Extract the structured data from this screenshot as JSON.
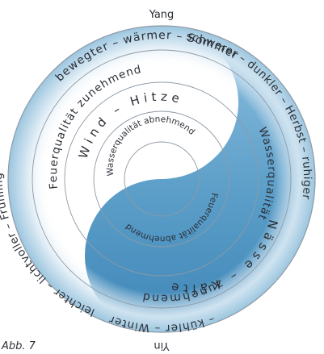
{
  "poles": {
    "top": "Yang",
    "bottom": "Yin"
  },
  "outer_ring": {
    "top": "bewegter – wärmer – Sommer",
    "right": "schwerer – dunkler – Herbst – ruhiger",
    "bottom": "– kühler – Winter",
    "left": "leichter – lichtvoller – Frühling –"
  },
  "middle_ring": {
    "upper": "Feuerqualität zunehmend",
    "right": "Wasserqualität",
    "lower": "zunehmend"
  },
  "inner_ring": {
    "upper": "Wind – Hitze",
    "lower": "Nässe – Kälte"
  },
  "core": {
    "upper": "Wasserqualität abnehmend",
    "lower": "Feuerqualität abnehmend"
  },
  "caption": "Abb. 7",
  "colors": {
    "yin": "#5b9ec8",
    "rim": "#9cc6df",
    "line": "#8e9aa6",
    "ink": "#2b2f36"
  }
}
